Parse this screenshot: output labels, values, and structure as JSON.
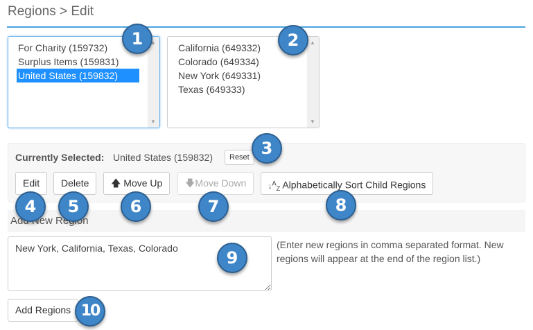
{
  "header": {
    "title": "Regions > Edit"
  },
  "parent_list": {
    "items": [
      "For Charity (159732)",
      "Surplus Items (159831)",
      "United States (159832)"
    ],
    "selected": "United States (159832)"
  },
  "child_list": {
    "items": [
      "California (649332)",
      "Colorado (649334)",
      "New York (649331)",
      "Texas (649333)"
    ]
  },
  "selection": {
    "label": "Currently Selected:",
    "value": "United States (159832)",
    "reset": "Reset"
  },
  "toolbar": {
    "edit": "Edit",
    "delete": "Delete",
    "move_up": "Move Up",
    "move_down": "Move Down",
    "sort": "Alphabetically Sort Child Regions"
  },
  "add": {
    "heading": "Add New Region",
    "textarea_value": "New York, California, Texas, Colorado",
    "help": "(Enter new regions in comma separated format. New regions will appear at the end of the region list.)",
    "button": "Add Regions"
  },
  "badges": [
    "1",
    "2",
    "3",
    "4",
    "5",
    "6",
    "7",
    "8",
    "9",
    "10"
  ],
  "colors": {
    "accent": "#4aa3df",
    "selected": "#1e90ff",
    "badge": "#3f86c9"
  }
}
